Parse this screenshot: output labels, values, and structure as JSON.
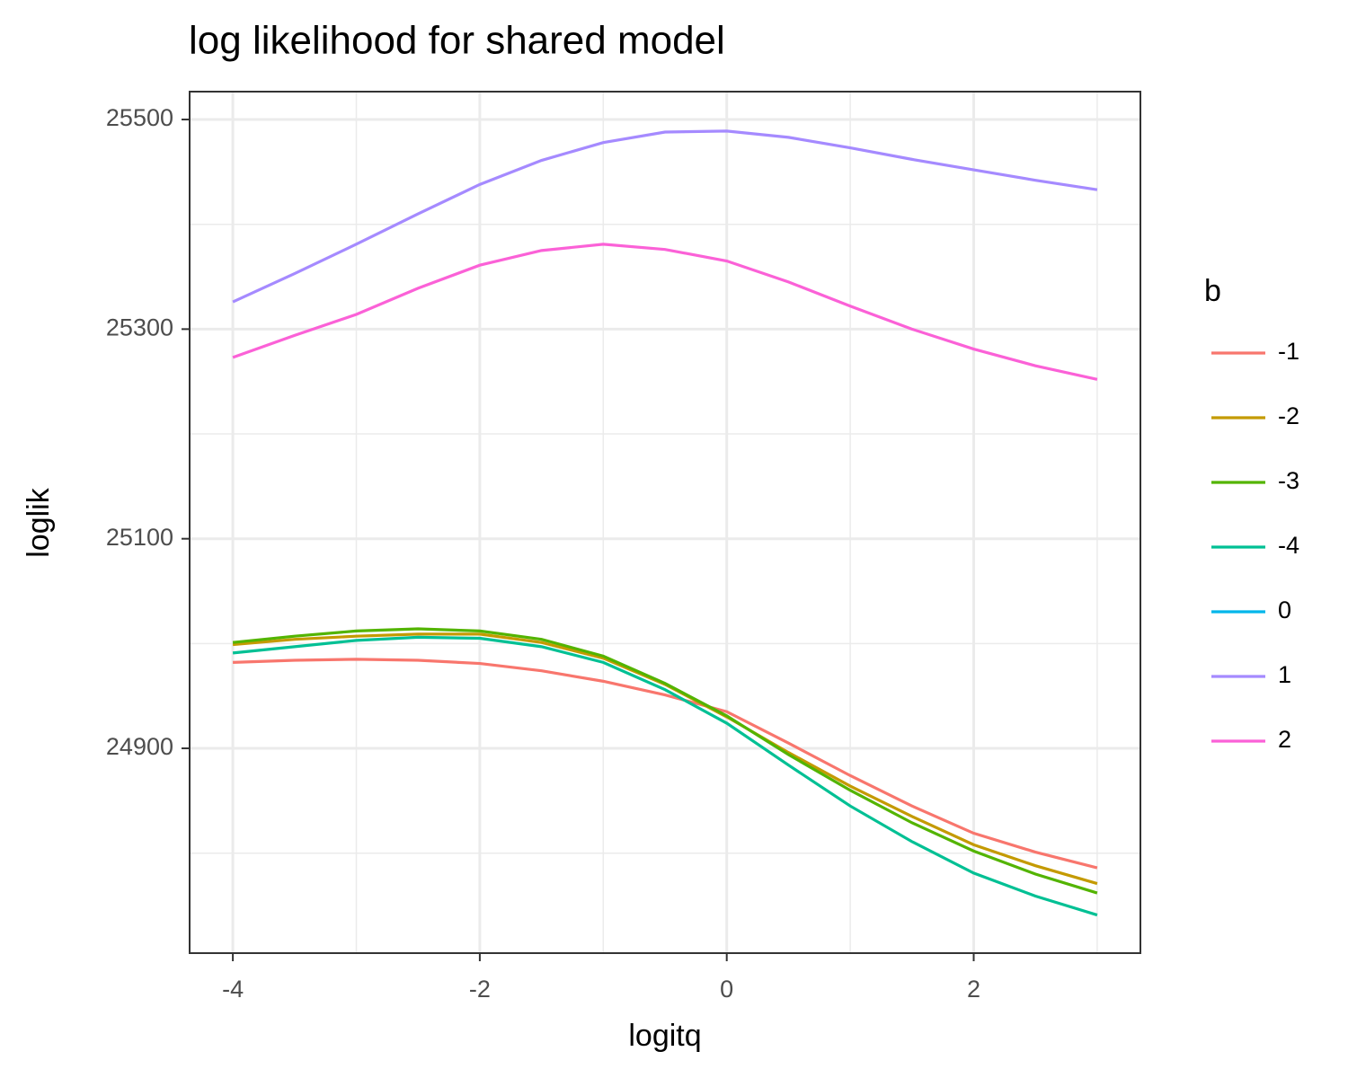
{
  "chart_data": {
    "type": "line",
    "title": "log likelihood for shared model",
    "x_label": "logitq",
    "y_label": "loglik",
    "legend_title": "b",
    "x": [
      -4,
      -3.5,
      -3,
      -2.5,
      -2,
      -1.5,
      -1,
      -0.5,
      0,
      0.5,
      1,
      1.5,
      2,
      2.5,
      3
    ],
    "series": [
      {
        "name": "-1",
        "color": "#F8766D",
        "values": [
          24982,
          24984,
          24985,
          24984,
          24981,
          24974,
          24964,
          24951,
          24935,
          24905,
          24874,
          24845,
          24819,
          24801,
          24786
        ]
      },
      {
        "name": "-2",
        "color": "#C49A00",
        "values": [
          24999,
          25004,
          25007,
          25009,
          25009,
          25001,
          24986,
          24961,
          24930,
          24896,
          24864,
          24835,
          24808,
          24788,
          24771
        ]
      },
      {
        "name": "-3",
        "color": "#53B400",
        "values": [
          25001,
          25007,
          25012,
          25014,
          25012,
          25004,
          24988,
          24962,
          24931,
          24894,
          24860,
          24829,
          24802,
          24780,
          24762
        ]
      },
      {
        "name": "-4",
        "color": "#00C094",
        "values": [
          24991,
          24997,
          25003,
          25006,
          25005,
          24997,
          24982,
          24956,
          24924,
          24884,
          24845,
          24811,
          24781,
          24759,
          24741
        ]
      },
      {
        "name": "0",
        "color": "#00B6EB",
        "values": [
          null,
          null,
          null,
          null,
          null,
          null,
          null,
          null,
          null,
          null,
          null,
          null,
          null,
          null,
          null
        ]
      },
      {
        "name": "1",
        "color": "#A58AFF",
        "values": [
          25326,
          25353,
          25381,
          25410,
          25438,
          25461,
          25478,
          25488,
          25489,
          25483,
          25473,
          25462,
          25452,
          25442,
          25433
        ]
      },
      {
        "name": "2",
        "color": "#FB61D7",
        "values": [
          25273,
          25294,
          25314,
          25339,
          25361,
          25375,
          25381,
          25376,
          25365,
          25345,
          25322,
          25300,
          25281,
          25265,
          25252
        ]
      }
    ],
    "xlim": [
      -4.35,
      3.35
    ],
    "ylim": [
      24704.6,
      25526.6
    ],
    "xticks": [
      -4,
      -2,
      0,
      2
    ],
    "yticks": [
      24900,
      25100,
      25300,
      25500
    ],
    "x_minor_ticks": [
      -3,
      -1,
      1,
      3
    ],
    "y_minor_ticks": [
      24800,
      25000,
      25200,
      25400
    ],
    "grid": true,
    "legend": "right"
  }
}
